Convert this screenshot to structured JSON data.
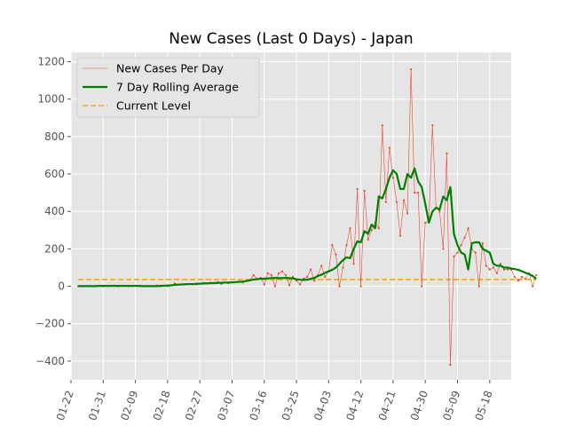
{
  "chart_data": {
    "type": "line",
    "title": "New Cases (Last 0 Days) - Japan",
    "xlabel": "",
    "ylabel": "",
    "x_start": "2020-01-24",
    "ylim": [
      -500,
      1250
    ],
    "yticks": [
      -400,
      -200,
      0,
      200,
      400,
      600,
      800,
      1000,
      1200
    ],
    "yticklabels": [
      "−400",
      "−200",
      "0",
      "200",
      "400",
      "600",
      "800",
      "1000",
      "1200"
    ],
    "xticklabels": [
      "01-22",
      "01-31",
      "02-09",
      "02-18",
      "02-27",
      "03-07",
      "03-16",
      "03-25",
      "04-03",
      "04-12",
      "04-21",
      "04-30",
      "05-09",
      "05-18"
    ],
    "grid": true,
    "legend": "top-left",
    "series": [
      {
        "name": "New Cases Per Day",
        "style": "thin-line-with-points",
        "color": "#e24a33",
        "values": [
          0,
          0,
          0,
          0,
          0,
          3,
          3,
          0,
          1,
          2,
          4,
          0,
          2,
          3,
          0,
          1,
          3,
          2,
          0,
          2,
          0,
          3,
          4,
          0,
          3,
          2,
          5,
          15,
          8,
          10,
          11,
          12,
          10,
          10,
          14,
          18,
          14,
          20,
          18,
          22,
          12,
          20,
          17,
          21,
          23,
          25,
          20,
          30,
          33,
          59,
          40,
          45,
          10,
          70,
          60,
          0,
          68,
          80,
          60,
          5,
          50,
          30,
          10,
          40,
          50,
          90,
          30,
          60,
          110,
          50,
          80,
          220,
          170,
          0,
          100,
          220,
          310,
          120,
          520,
          0,
          510,
          250,
          300,
          340,
          310,
          860,
          450,
          740,
          580,
          450,
          270,
          460,
          390,
          1160,
          500,
          500,
          0,
          340,
          350,
          860,
          420,
          400,
          200,
          710,
          -420,
          160,
          180,
          220,
          260,
          310,
          200,
          180,
          0,
          230,
          110,
          90,
          100,
          70,
          120,
          90,
          90,
          90,
          50,
          30,
          50,
          40,
          70,
          0,
          60
        ],
        "value_at_index_55_note": ""
      },
      {
        "name": "7 Day Rolling Average",
        "style": "thick-line",
        "color": "#008000",
        "values": [
          1,
          1,
          1,
          1,
          1,
          1,
          2,
          2,
          2,
          2,
          2,
          2,
          2,
          2,
          2,
          2,
          2,
          2,
          1,
          1,
          1,
          1,
          1,
          2,
          3,
          4,
          5,
          8,
          9,
          10,
          11,
          12,
          12,
          13,
          14,
          15,
          16,
          16,
          17,
          18,
          19,
          20,
          20,
          21,
          22,
          24,
          25,
          28,
          32,
          36,
          38,
          40,
          41,
          42,
          44,
          45,
          43,
          44,
          45,
          44,
          42,
          38,
          35,
          34,
          35,
          40,
          45,
          55,
          62,
          72,
          80,
          88,
          100,
          120,
          140,
          155,
          150,
          200,
          240,
          235,
          295,
          280,
          330,
          310,
          480,
          470,
          520,
          580,
          620,
          600,
          520,
          520,
          600,
          580,
          630,
          560,
          530,
          440,
          340,
          400,
          420,
          410,
          480,
          460,
          530,
          280,
          220,
          180,
          170,
          90,
          230,
          235,
          235,
          200,
          190,
          180,
          120,
          110,
          110,
          100,
          100,
          95,
          92,
          88,
          80,
          72,
          65,
          55,
          40
        ]
      },
      {
        "name": "Current Level",
        "style": "dashed-hline",
        "color": "#ffa500",
        "y": 36
      }
    ]
  }
}
